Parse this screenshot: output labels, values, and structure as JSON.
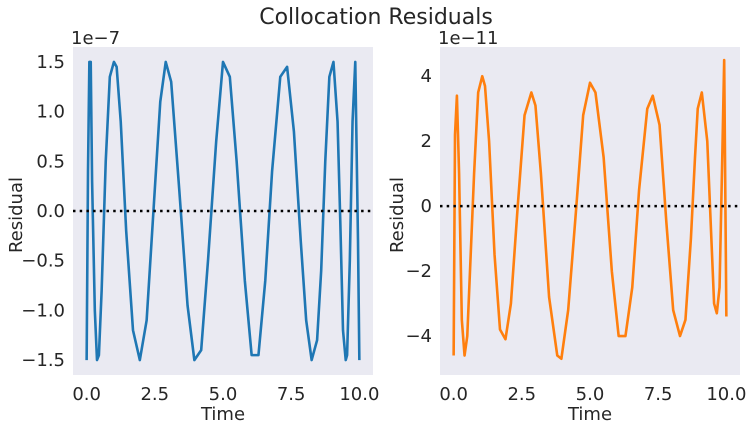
{
  "figure": {
    "title": "Collocation Residuals"
  },
  "chart_data": [
    {
      "type": "line",
      "xlabel": "Time",
      "ylabel": "Residual",
      "exponent_label": "1e−7",
      "xlim": [
        -0.5,
        10.5
      ],
      "ylim": [
        -1.65,
        1.65
      ],
      "xticks": [
        0.0,
        2.5,
        5.0,
        7.5,
        10.0
      ],
      "xtick_labels": [
        "0.0",
        "2.5",
        "5.0",
        "7.5",
        "10.0"
      ],
      "yticks": [
        1.5,
        1.0,
        0.5,
        0.0,
        -0.5,
        -1.0,
        -1.5
      ],
      "ytick_labels": [
        "1.5",
        "1.0",
        "0.5",
        "0.0",
        "−0.5",
        "−1.0",
        "−1.5"
      ],
      "grid": false,
      "reference_line": {
        "y": 0,
        "style": "dotted",
        "color": "#000000"
      },
      "series": [
        {
          "color": "#1f77b4",
          "x": [
            0.0,
            0.05,
            0.1,
            0.15,
            0.2,
            0.3,
            0.38,
            0.45,
            0.55,
            0.7,
            0.85,
            1.0,
            1.1,
            1.25,
            1.45,
            1.7,
            1.95,
            2.2,
            2.45,
            2.7,
            2.9,
            3.1,
            3.4,
            3.7,
            3.95,
            4.2,
            4.45,
            4.75,
            5.0,
            5.25,
            5.5,
            5.8,
            6.05,
            6.3,
            6.55,
            6.8,
            7.1,
            7.35,
            7.6,
            7.85,
            8.05,
            8.25,
            8.45,
            8.6,
            8.75,
            8.9,
            9.05,
            9.2,
            9.3,
            9.4,
            9.5,
            9.55,
            9.65,
            9.75,
            9.85,
            9.95,
            10.0
          ],
          "y": [
            -1.5,
            0.4,
            1.5,
            1.5,
            0.3,
            -1.0,
            -1.5,
            -1.45,
            -0.8,
            0.5,
            1.35,
            1.5,
            1.45,
            0.9,
            -0.2,
            -1.2,
            -1.5,
            -1.1,
            0.0,
            1.1,
            1.5,
            1.3,
            0.2,
            -0.95,
            -1.5,
            -1.4,
            -0.5,
            0.7,
            1.5,
            1.35,
            0.5,
            -0.7,
            -1.45,
            -1.45,
            -0.7,
            0.4,
            1.35,
            1.45,
            0.8,
            -0.3,
            -1.1,
            -1.5,
            -1.3,
            -0.6,
            0.5,
            1.35,
            1.5,
            0.9,
            -0.1,
            -1.2,
            -1.5,
            -1.45,
            -0.5,
            0.9,
            1.5,
            -0.3,
            -1.5
          ]
        }
      ]
    },
    {
      "type": "line",
      "xlabel": "Time",
      "ylabel": "Residual",
      "exponent_label": "1e−11",
      "xlim": [
        -0.5,
        10.5
      ],
      "ylim": [
        -5.2,
        4.9
      ],
      "xticks": [
        0.0,
        2.5,
        5.0,
        7.5,
        10.0
      ],
      "xtick_labels": [
        "0.0",
        "2.5",
        "5.0",
        "7.5",
        "10.0"
      ],
      "yticks": [
        4,
        2,
        0,
        -2,
        -4
      ],
      "ytick_labels": [
        "4",
        "2",
        "0",
        "−2",
        "−4"
      ],
      "grid": false,
      "reference_line": {
        "y": 0,
        "style": "dotted",
        "color": "#000000"
      },
      "series": [
        {
          "color": "#ff7f0e",
          "x": [
            0.0,
            0.05,
            0.12,
            0.2,
            0.3,
            0.4,
            0.5,
            0.6,
            0.75,
            0.9,
            1.05,
            1.15,
            1.3,
            1.5,
            1.7,
            1.9,
            2.1,
            2.35,
            2.6,
            2.85,
            3.0,
            3.2,
            3.5,
            3.8,
            3.95,
            4.2,
            4.5,
            4.75,
            5.0,
            5.2,
            5.5,
            5.8,
            6.05,
            6.3,
            6.55,
            6.8,
            7.1,
            7.3,
            7.55,
            7.8,
            8.05,
            8.3,
            8.5,
            8.7,
            8.85,
            8.95,
            9.1,
            9.3,
            9.45,
            9.55,
            9.65,
            9.75,
            9.85,
            9.92,
            10.0
          ],
          "y": [
            -4.6,
            2.2,
            3.4,
            1.0,
            -3.5,
            -4.6,
            -4.0,
            -2.0,
            1.0,
            3.5,
            4.0,
            3.7,
            2.0,
            -1.5,
            -3.8,
            -4.1,
            -3.0,
            0.0,
            2.8,
            3.5,
            3.1,
            1.0,
            -2.8,
            -4.6,
            -4.7,
            -3.2,
            0.0,
            2.8,
            3.8,
            3.5,
            1.5,
            -2.0,
            -4.0,
            -4.0,
            -2.5,
            0.5,
            3.0,
            3.4,
            2.5,
            -0.5,
            -3.2,
            -4.0,
            -3.5,
            -1.0,
            1.5,
            3.0,
            3.5,
            2.0,
            -1.0,
            -3.0,
            -3.3,
            -2.5,
            1.5,
            4.5,
            -3.4
          ]
        }
      ]
    }
  ]
}
